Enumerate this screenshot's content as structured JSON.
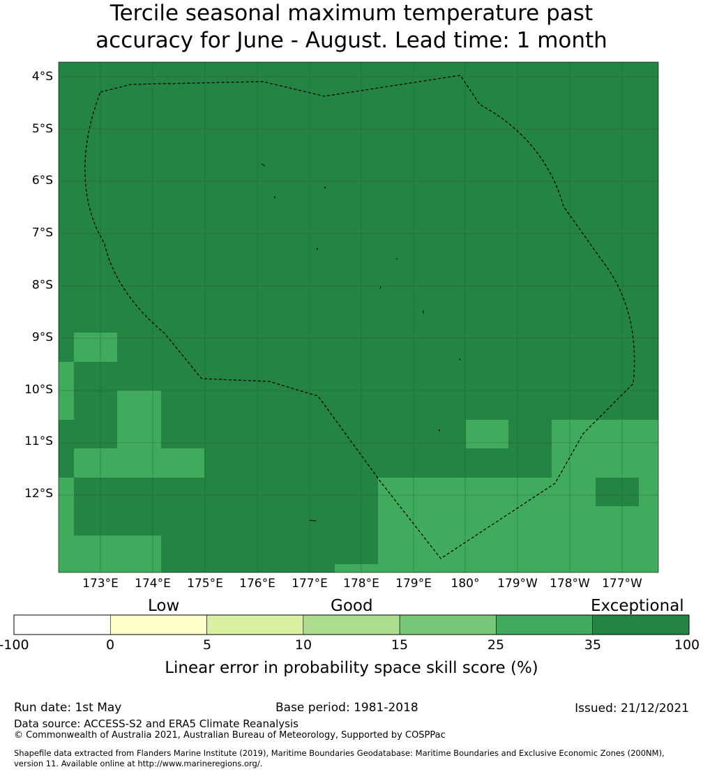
{
  "title": {
    "line1": "Tercile seasonal maximum temperature past",
    "line2": "accuracy for June - August. Lead time: 1 month"
  },
  "map": {
    "lat_labels": [
      "4°S",
      "5°S",
      "6°S",
      "7°S",
      "8°S",
      "9°S",
      "10°S",
      "11°S",
      "12°S"
    ],
    "lon_labels": [
      "173°E",
      "174°E",
      "175°E",
      "176°E",
      "177°E",
      "178°E",
      "179°E",
      "180°",
      "179°W",
      "178°W",
      "177°W"
    ],
    "region_shading": {
      "background_category": "35 to 100",
      "lighter_patches_category": "25 to 35"
    }
  },
  "legend": {
    "category_labels": [
      "Low",
      "Good",
      "Exceptional"
    ],
    "tick_labels": [
      "-100",
      "0",
      "5",
      "10",
      "15",
      "25",
      "35",
      "100"
    ],
    "colors": [
      "#ffffff",
      "#ffffcc",
      "#d9f0a3",
      "#addd8e",
      "#78c679",
      "#41ab5d",
      "#238443"
    ],
    "title": "Linear error in probability space skill score (%)"
  },
  "footer": {
    "run_date": "Run date: 1st May",
    "base_period": "Base period: 1981-2018",
    "issued": "Issued: 21/12/2021",
    "data_source": "Data source: ACCESS-S2 and ERA5 Climate Reanalysis",
    "copyright": "© Commonwealth of Australia 2021, Australian Bureau of Meteorology, Supported by COSPPac",
    "shapefile_line1": "Shapefile data extracted from Flanders Marine Institute (2019), Maritime Boundaries Geodatabase: Maritime Boundaries and Exclusive Economic Zones (200NM),",
    "shapefile_line2": "version 11. Available online at http://www.marineregions.org/."
  }
}
